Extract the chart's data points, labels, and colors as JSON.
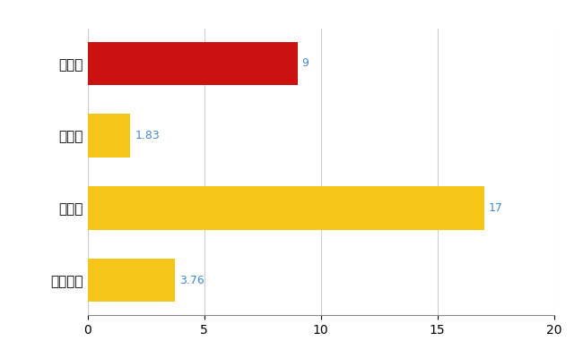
{
  "categories": [
    "佐久市",
    "県平均",
    "県最大",
    "全国平均"
  ],
  "values": [
    9,
    1.83,
    17,
    3.76
  ],
  "bar_colors": [
    "#CC1111",
    "#F5C518",
    "#F5C518",
    "#F5C518"
  ],
  "value_labels": [
    "9",
    "1.83",
    "17",
    "3.76"
  ],
  "label_color": "#4488CC",
  "xlim": [
    0,
    20
  ],
  "xticks": [
    0,
    5,
    10,
    15,
    20
  ],
  "background_color": "#FFFFFF",
  "grid_color": "#CCCCCC",
  "bar_height": 0.6,
  "figsize": [
    6.5,
    4.0
  ],
  "dpi": 100
}
